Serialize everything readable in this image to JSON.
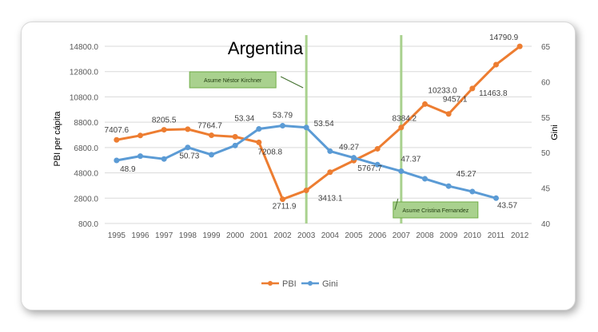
{
  "chart_data": {
    "type": "line",
    "title": "Argentina",
    "xlabel": "",
    "ylabel": "PBI per cápita",
    "y2label": "Gini",
    "categories": [
      "1995",
      "1996",
      "1997",
      "1998",
      "1999",
      "2000",
      "2001",
      "2002",
      "2003",
      "2004",
      "2005",
      "2006",
      "2007",
      "2008",
      "2009",
      "2010",
      "2011",
      "2012"
    ],
    "ylim": [
      800,
      14800
    ],
    "y_ticks": [
      "14800.0",
      "12800.0",
      "10800.0",
      "8800.0",
      "6800.0",
      "4800.0",
      "2800.0",
      "800.0"
    ],
    "y2lim": [
      40,
      65
    ],
    "y2_ticks": [
      "65",
      "60",
      "55",
      "50",
      "45",
      "40"
    ],
    "grid": true,
    "legend_position": "bottom",
    "series": [
      {
        "name": "PBI",
        "axis": "left",
        "color": "#ED7D31",
        "values": [
          7407.6,
          7750,
          8205.5,
          8250,
          7764.7,
          7650,
          7208.8,
          2711.9,
          3413.1,
          4850,
          5767.7,
          6700,
          8384.2,
          10233.0,
          9457.1,
          11463.8,
          13350,
          14790.9
        ]
      },
      {
        "name": "Gini",
        "axis": "right",
        "color": "#5B9BD5",
        "values": [
          48.9,
          49.5,
          49.1,
          50.73,
          49.7,
          51.0,
          53.34,
          53.79,
          53.54,
          50.2,
          49.27,
          48.3,
          47.37,
          46.3,
          45.27,
          44.5,
          43.57,
          null
        ]
      }
    ],
    "data_labels": [
      {
        "series": 0,
        "index": 0,
        "text": "7407.6"
      },
      {
        "series": 0,
        "index": 2,
        "text": "8205.5"
      },
      {
        "series": 0,
        "index": 4,
        "text": "7764.7"
      },
      {
        "series": 0,
        "index": 6,
        "text": "7208.8"
      },
      {
        "series": 0,
        "index": 7,
        "text": "2711.9"
      },
      {
        "series": 0,
        "index": 8,
        "text": "3413.1"
      },
      {
        "series": 0,
        "index": 10,
        "text": "5767.7"
      },
      {
        "series": 0,
        "index": 12,
        "text": "8384.2"
      },
      {
        "series": 0,
        "index": 13,
        "text": "10233.0"
      },
      {
        "series": 0,
        "index": 14,
        "text": "9457.1"
      },
      {
        "series": 0,
        "index": 15,
        "text": "11463.8"
      },
      {
        "series": 0,
        "index": 17,
        "text": "14790.9"
      },
      {
        "series": 1,
        "index": 0,
        "text": "48.9"
      },
      {
        "series": 1,
        "index": 3,
        "text": "50.73"
      },
      {
        "series": 1,
        "index": 6,
        "text": "53.34"
      },
      {
        "series": 1,
        "index": 7,
        "text": "53.79"
      },
      {
        "series": 1,
        "index": 8,
        "text": "53.54"
      },
      {
        "series": 1,
        "index": 10,
        "text": "49.27"
      },
      {
        "series": 1,
        "index": 12,
        "text": "47.37"
      },
      {
        "series": 1,
        "index": 14,
        "text": "45.27"
      },
      {
        "series": 1,
        "index": 16,
        "text": "43.57"
      }
    ],
    "vertical_markers": [
      {
        "category": "2003",
        "label": "Asume Néstor Kirchner",
        "color": "#A9D18E"
      },
      {
        "category": "2007",
        "label": "Asume Cristina Fernandez",
        "color": "#A9D18E"
      }
    ]
  }
}
